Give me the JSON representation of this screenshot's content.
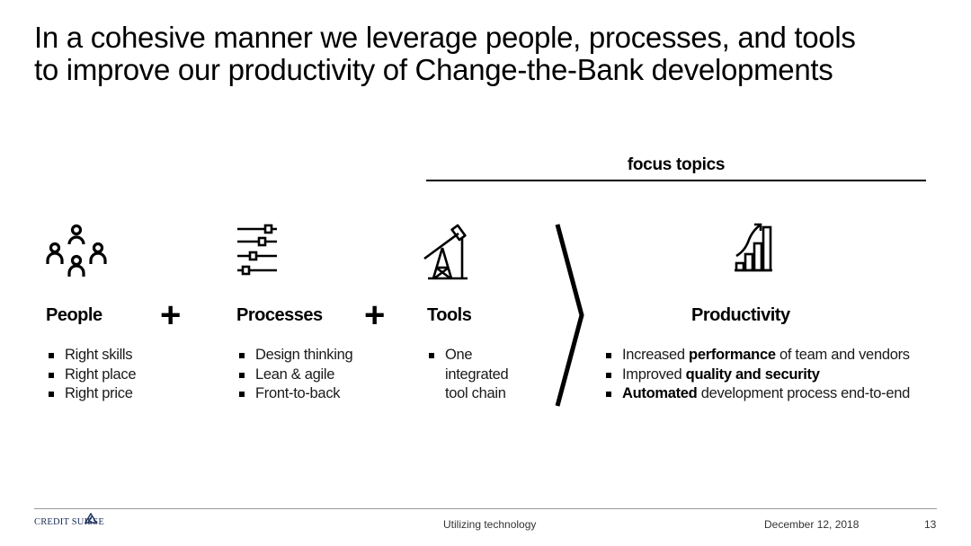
{
  "title": {
    "line1": "In a cohesive manner we leverage people, processes, and tools",
    "line2": "to improve our productivity of Change-the-Bank developments"
  },
  "focus_topics": {
    "label": "focus topics"
  },
  "columns": [
    {
      "heading": "People",
      "icon": "people-group-icon",
      "bullets": [
        "Right skills",
        "Right place",
        "Right price"
      ]
    },
    {
      "heading": "Processes",
      "icon": "sliders-icon",
      "bullets": [
        "Design thinking",
        "Lean & agile",
        "Front-to-back"
      ]
    },
    {
      "heading": "Tools",
      "icon": "oil-pump-icon",
      "bullets": [
        "One integrated tool chain"
      ]
    }
  ],
  "operators": {
    "plus": "+"
  },
  "productivity": {
    "heading": "Productivity",
    "icon": "growth-bar-chart-icon",
    "bullets": [
      {
        "pre": "Increased ",
        "bold": "performance",
        "post": " of team and vendors"
      },
      {
        "pre": "Improved ",
        "bold": "quality and security",
        "post": ""
      },
      {
        "pre": "",
        "bold": "Automated",
        "post": " development process end-to-end"
      }
    ]
  },
  "footer": {
    "logo": "CREDIT SUISSE",
    "center_text": "Utilizing technology",
    "date": "December 12, 2018",
    "page_number": "13"
  },
  "colors": {
    "text": "#000000",
    "logo": "#1b2e5a",
    "rule": "#9a9a9a"
  }
}
